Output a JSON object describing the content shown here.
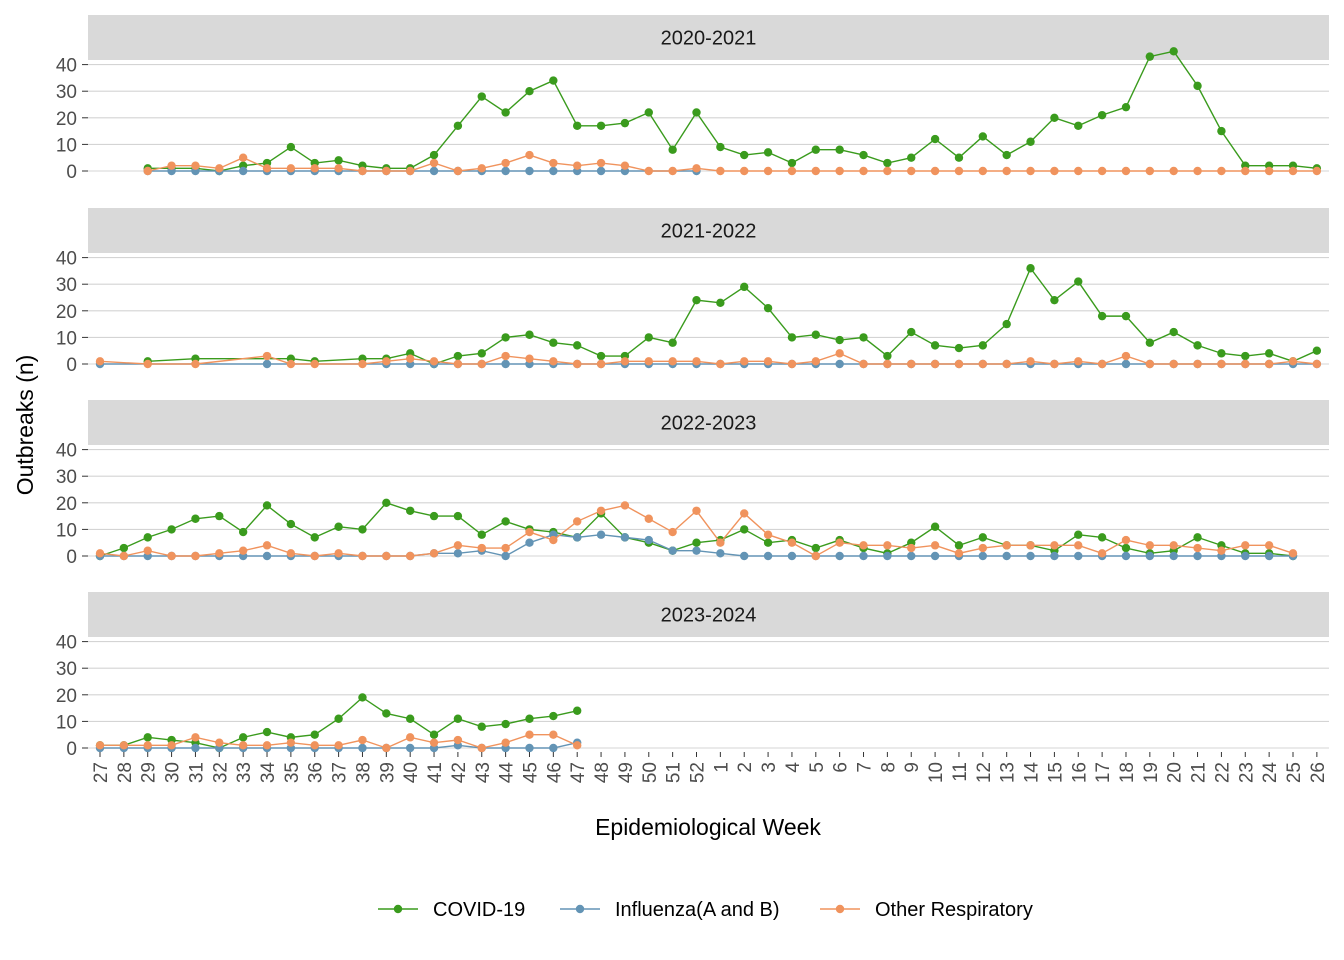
{
  "chart_data": {
    "type": "line",
    "ylabel": "Outbreaks (n)",
    "xlabel": "Epidemiological Week",
    "ylim": [
      0,
      45
    ],
    "yticks": [
      0,
      10,
      20,
      30,
      40
    ],
    "grid": true,
    "legend_position": "bottom",
    "weeks": [
      "27",
      "28",
      "29",
      "30",
      "31",
      "32",
      "33",
      "34",
      "35",
      "36",
      "37",
      "38",
      "39",
      "40",
      "41",
      "42",
      "43",
      "44",
      "45",
      "46",
      "47",
      "48",
      "49",
      "50",
      "51",
      "52",
      "1",
      "2",
      "3",
      "4",
      "5",
      "6",
      "7",
      "8",
      "9",
      "10",
      "11",
      "12",
      "13",
      "14",
      "15",
      "16",
      "17",
      "18",
      "19",
      "20",
      "21",
      "22",
      "23",
      "24",
      "25",
      "26"
    ],
    "series_meta": [
      {
        "name": "COVID-19",
        "color": "#3a9b1d"
      },
      {
        "name": "Influenza(A and B)",
        "color": "#6394b5"
      },
      {
        "name": "Other Respiratory",
        "color": "#f0935d"
      }
    ],
    "panels": [
      {
        "title": "2020-2021",
        "series": [
          {
            "name": "COVID-19",
            "values": [
              null,
              null,
              1,
              1,
              1,
              0,
              2,
              3,
              9,
              3,
              4,
              2,
              1,
              1,
              6,
              17,
              28,
              22,
              30,
              34,
              17,
              17,
              18,
              22,
              8,
              22,
              9,
              6,
              7,
              3,
              8,
              8,
              6,
              3,
              5,
              12,
              5,
              13,
              6,
              11,
              20,
              17,
              21,
              24,
              43,
              45,
              32,
              15,
              2,
              2,
              2,
              1
            ]
          },
          {
            "name": "Influenza(A and B)",
            "values": [
              null,
              null,
              0,
              0,
              0,
              0,
              0,
              0,
              0,
              0,
              0,
              0,
              0,
              0,
              0,
              0,
              0,
              0,
              0,
              0,
              0,
              0,
              0,
              null,
              null,
              0,
              null,
              null,
              null,
              null,
              null,
              null,
              null,
              null,
              null,
              null,
              null,
              null,
              null,
              null,
              null,
              null,
              null,
              null,
              null,
              null,
              null,
              null,
              null,
              null,
              null,
              null
            ]
          },
          {
            "name": "Other Respiratory",
            "values": [
              null,
              null,
              0,
              2,
              2,
              1,
              5,
              1,
              1,
              1,
              1,
              0,
              0,
              0,
              3,
              0,
              1,
              3,
              6,
              3,
              2,
              3,
              2,
              0,
              0,
              1,
              0,
              0,
              0,
              0,
              0,
              0,
              0,
              0,
              0,
              0,
              0,
              0,
              0,
              0,
              0,
              0,
              0,
              0,
              0,
              0,
              0,
              0,
              0,
              0,
              0,
              0
            ]
          }
        ]
      },
      {
        "title": "2021-2022",
        "series": [
          {
            "name": "COVID-19",
            "values": [
              null,
              null,
              1,
              null,
              2,
              null,
              null,
              null,
              2,
              1,
              null,
              2,
              2,
              4,
              0,
              3,
              4,
              10,
              11,
              8,
              7,
              3,
              3,
              10,
              8,
              24,
              23,
              29,
              21,
              10,
              11,
              9,
              10,
              3,
              12,
              7,
              6,
              7,
              15,
              36,
              24,
              31,
              18,
              18,
              8,
              12,
              7,
              4,
              3,
              4,
              1,
              5
            ]
          },
          {
            "name": "Influenza(A and B)",
            "values": [
              0,
              null,
              null,
              null,
              null,
              null,
              null,
              0,
              null,
              null,
              null,
              null,
              0,
              0,
              0,
              0,
              0,
              0,
              0,
              0,
              0,
              0,
              0,
              0,
              0,
              0,
              0,
              0,
              0,
              0,
              0,
              0,
              0,
              0,
              0,
              0,
              0,
              0,
              0,
              0,
              0,
              0,
              0,
              0,
              0,
              0,
              0,
              0,
              0,
              0,
              0,
              0
            ]
          },
          {
            "name": "Other Respiratory",
            "values": [
              1,
              null,
              0,
              null,
              0,
              null,
              null,
              3,
              0,
              0,
              null,
              0,
              1,
              2,
              1,
              0,
              0,
              3,
              2,
              1,
              0,
              0,
              1,
              1,
              1,
              1,
              0,
              1,
              1,
              0,
              1,
              4,
              0,
              0,
              0,
              0,
              0,
              0,
              0,
              1,
              0,
              1,
              0,
              3,
              0,
              0,
              0,
              0,
              0,
              0,
              1,
              0
            ]
          }
        ]
      },
      {
        "title": "2022-2023",
        "series": [
          {
            "name": "COVID-19",
            "values": [
              0,
              3,
              7,
              10,
              14,
              15,
              9,
              19,
              12,
              7,
              11,
              10,
              20,
              17,
              15,
              15,
              8,
              13,
              10,
              9,
              7,
              16,
              7,
              5,
              2,
              5,
              6,
              10,
              5,
              6,
              3,
              6,
              3,
              1,
              5,
              11,
              4,
              7,
              4,
              4,
              2,
              8,
              7,
              3,
              1,
              2,
              7,
              4,
              1,
              1,
              0,
              null
            ]
          },
          {
            "name": "Influenza(A and B)",
            "values": [
              0,
              0,
              0,
              0,
              0,
              0,
              0,
              0,
              0,
              0,
              0,
              0,
              0,
              0,
              1,
              1,
              2,
              0,
              5,
              8,
              7,
              8,
              7,
              6,
              2,
              2,
              1,
              0,
              0,
              0,
              0,
              0,
              0,
              0,
              0,
              0,
              0,
              0,
              0,
              0,
              0,
              0,
              0,
              0,
              0,
              0,
              0,
              0,
              0,
              0,
              0,
              null
            ]
          },
          {
            "name": "Other Respiratory",
            "values": [
              1,
              0,
              2,
              0,
              0,
              1,
              2,
              4,
              1,
              0,
              1,
              0,
              0,
              0,
              1,
              4,
              3,
              3,
              9,
              6,
              13,
              17,
              19,
              14,
              9,
              17,
              5,
              16,
              8,
              5,
              0,
              5,
              4,
              4,
              3,
              4,
              1,
              3,
              4,
              4,
              4,
              4,
              1,
              6,
              4,
              4,
              3,
              2,
              4,
              4,
              1,
              null
            ]
          }
        ]
      },
      {
        "title": "2023-2024",
        "series": [
          {
            "name": "COVID-19",
            "values": [
              1,
              1,
              4,
              3,
              2,
              0,
              4,
              6,
              4,
              5,
              11,
              19,
              13,
              11,
              5,
              11,
              8,
              9,
              11,
              12,
              14,
              null,
              null,
              null,
              null,
              null,
              null,
              null,
              null,
              null,
              null,
              null,
              null,
              null,
              null,
              null,
              null,
              null,
              null,
              null,
              null,
              null,
              null,
              null,
              null,
              null,
              null,
              null,
              null,
              null,
              null,
              null
            ]
          },
          {
            "name": "Influenza(A and B)",
            "values": [
              0,
              0,
              0,
              0,
              0,
              0,
              0,
              0,
              0,
              0,
              0,
              0,
              0,
              0,
              0,
              1,
              0,
              0,
              0,
              0,
              2,
              null,
              null,
              null,
              null,
              null,
              null,
              null,
              null,
              null,
              null,
              null,
              null,
              null,
              null,
              null,
              null,
              null,
              null,
              null,
              null,
              null,
              null,
              null,
              null,
              null,
              null,
              null,
              null,
              null,
              null,
              null
            ]
          },
          {
            "name": "Other Respiratory",
            "values": [
              1,
              1,
              1,
              1,
              4,
              2,
              1,
              1,
              2,
              1,
              1,
              3,
              0,
              4,
              2,
              3,
              0,
              2,
              5,
              5,
              1,
              null,
              null,
              null,
              null,
              null,
              null,
              null,
              null,
              null,
              null,
              null,
              null,
              null,
              null,
              null,
              null,
              null,
              null,
              null,
              null,
              null,
              null,
              null,
              null,
              null,
              null,
              null,
              null,
              null,
              null,
              null
            ]
          }
        ]
      }
    ]
  }
}
